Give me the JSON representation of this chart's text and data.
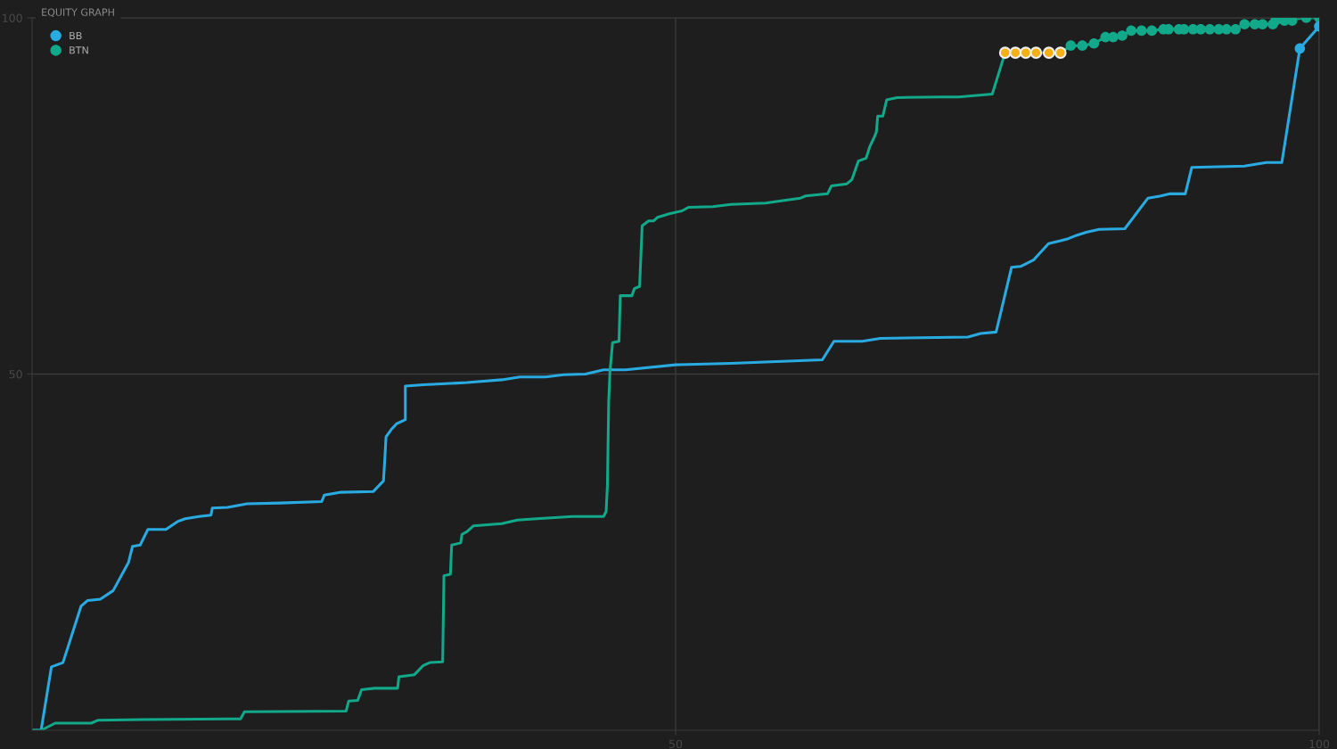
{
  "chart_data": {
    "type": "line",
    "title": "EQUITY GRAPH",
    "xlim": [
      0,
      100
    ],
    "ylim": [
      0,
      100
    ],
    "xticks": [
      50,
      100
    ],
    "yticks": [
      50,
      100
    ],
    "grid": true,
    "legend": "top left",
    "marker": "none",
    "series": [
      {
        "name": "BB",
        "color": "#29abe2",
        "x": [
          0,
          0.7,
          1.5,
          2.4,
          3.8,
          4.3,
          5.3,
          6.3,
          7.5,
          7.8,
          8.4,
          9,
          10.4,
          11.3,
          11.9,
          12.97,
          13.9,
          14,
          15.2,
          16.7,
          19.3,
          22.5,
          22.7,
          23.9,
          26.5,
          27.3,
          27.4,
          27.5,
          27.9,
          28.3,
          29,
          29,
          30.4,
          33.8,
          36.5,
          37.9,
          39.9,
          41.3,
          43,
          44.4,
          46.1,
          50,
          54.3,
          61.4,
          62.3,
          64.5,
          65.9,
          72.7,
          73.7,
          74.9,
          76.1,
          76.8,
          77.8,
          78.97,
          79.9,
          80.5,
          81.2,
          81.9,
          82.9,
          84.9,
          86.7,
          87.7,
          88.4,
          89.6,
          90.1,
          94.2,
          95.9,
          97.1,
          98.5,
          100
        ],
        "values": [
          0,
          0,
          8.9,
          9.5,
          17.4,
          18.2,
          18.4,
          19.6,
          23.6,
          25.8,
          26,
          28.2,
          28.2,
          29.3,
          29.7,
          30,
          30.2,
          31.2,
          31.3,
          31.8,
          31.9,
          32.1,
          33,
          33.4,
          33.5,
          35,
          37.9,
          41.2,
          42.2,
          43,
          43.6,
          48.3,
          48.5,
          48.8,
          49.2,
          49.6,
          49.6,
          49.9,
          50,
          50.6,
          50.6,
          51.3,
          51.5,
          52,
          54.6,
          54.6,
          55,
          55.2,
          55.7,
          55.9,
          65,
          65.1,
          66,
          68.3,
          68.7,
          69,
          69.5,
          69.9,
          70.3,
          70.4,
          74.7,
          75,
          75.3,
          75.3,
          79,
          79.2,
          79.7,
          79.7,
          95.7,
          98.8
        ]
      },
      {
        "name": "BTN",
        "color": "#12a88a",
        "x": [
          0,
          0.7,
          1.8,
          4.6,
          5.1,
          8.5,
          16.2,
          16.5,
          24.4,
          24.6,
          25.3,
          25.6,
          26.6,
          28.4,
          28.5,
          29.7,
          30.4,
          30.9,
          31.9,
          32,
          32.5,
          32.6,
          33.3,
          33.4,
          33.8,
          34.3,
          36.5,
          37.7,
          39.2,
          41.98,
          44.4,
          44.6,
          44.7,
          44.8,
          44.9,
          45.1,
          45.6,
          45.7,
          46.6,
          46.8,
          47.2,
          47.4,
          47.9,
          48.3,
          48.6,
          49.5,
          50.5,
          51,
          52.9,
          54.3,
          57,
          57.7,
          59.7,
          60.1,
          61.8,
          62.1,
          63.3,
          63.7,
          64.2,
          64.8,
          65.1,
          65.4,
          65.6,
          65.7,
          66.1,
          66.4,
          67.2,
          70.6,
          72,
          74.6,
          75.6,
          79.9,
          80.7,
          81.6,
          82.5,
          83.4,
          84.0,
          84.7,
          85.4,
          86.2,
          87.0,
          87.9,
          93.5,
          94.2,
          96.4,
          96.6,
          99.0,
          100
        ],
        "values": [
          0,
          0,
          1,
          1,
          1.4,
          1.5,
          1.6,
          2.6,
          2.7,
          4.1,
          4.2,
          5.7,
          5.9,
          5.9,
          7.5,
          7.8,
          9.1,
          9.5,
          9.6,
          21.7,
          21.9,
          26,
          26.3,
          27.5,
          27.9,
          28.7,
          29,
          29.5,
          29.7,
          30,
          30,
          30.7,
          34.4,
          46.1,
          50.4,
          54.4,
          54.6,
          61,
          61,
          62,
          62.3,
          70.8,
          71.5,
          71.5,
          72,
          72.5,
          72.9,
          73.4,
          73.5,
          73.8,
          74,
          74.2,
          74.7,
          75,
          75.3,
          76.4,
          76.7,
          77.3,
          79.9,
          80.3,
          82,
          83.1,
          84,
          86.2,
          86.2,
          88.5,
          88.8,
          88.9,
          88.9,
          89.3,
          95.1,
          95.1,
          96.1,
          96.1,
          96.4,
          97.3,
          97.3,
          97.5,
          98.2,
          98.2,
          98.2,
          98.4,
          98.4,
          99.1,
          99.1,
          99.6,
          100,
          100
        ]
      },
      {
        "type": "scatter",
        "marker": "circle",
        "color": "#12a88a",
        "x": [
          80.7,
          81.6,
          82.5,
          83.4,
          84.0,
          84.7,
          85.4,
          86.2,
          87.0,
          87.9,
          88.3,
          89.1,
          89.5,
          90.2,
          90.8,
          91.5,
          92.2,
          92.8,
          93.5,
          94.2,
          95.0,
          95.6,
          96.4,
          96.6,
          97.3,
          97.9,
          99.0,
          100
        ],
        "values": [
          96.1,
          96.1,
          96.4,
          97.3,
          97.3,
          97.5,
          98.2,
          98.2,
          98.2,
          98.4,
          98.4,
          98.4,
          98.4,
          98.4,
          98.4,
          98.4,
          98.4,
          98.4,
          98.4,
          99.1,
          99.1,
          99.1,
          99.1,
          99.6,
          99.6,
          99.6,
          100,
          100
        ]
      },
      {
        "type": "scatter",
        "marker": "circle",
        "color": "#f5b014",
        "x": [
          75.6,
          76.4,
          77.2,
          78.0,
          79.0,
          79.9
        ],
        "values": [
          95.1,
          95.1,
          95.1,
          95.1,
          95.1,
          95.1
        ]
      },
      {
        "type": "scatter",
        "marker": "circle",
        "color": "#29abe2",
        "x": [
          98.5,
          100
        ],
        "values": [
          95.7,
          98.8
        ]
      }
    ]
  }
}
